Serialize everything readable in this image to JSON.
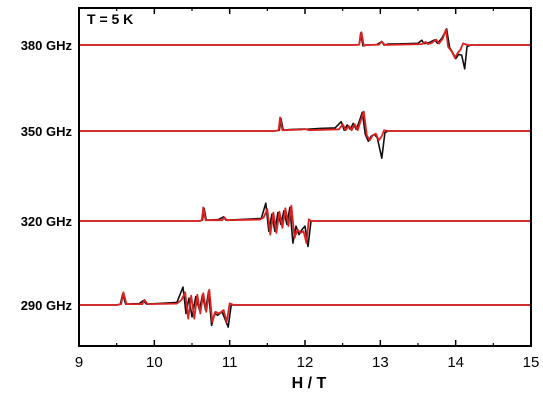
{
  "chart_data": {
    "type": "line",
    "title": "",
    "annotation": "T = 5 K",
    "xlabel": "H / T",
    "ylabel": "",
    "xlim": [
      9,
      15
    ],
    "x_ticks": [
      "9",
      "10",
      "11",
      "12",
      "13",
      "14",
      "15"
    ],
    "grid": false,
    "legend": "none",
    "colors": {
      "experiment": "#111111",
      "simulation": "#dd2222",
      "axes": "#000000"
    },
    "traces": [
      {
        "label": "380 GHz",
        "experiment": [
          [
            9.0,
            0
          ],
          [
            12.6,
            0
          ],
          [
            12.72,
            0.02
          ],
          [
            12.74,
            0.7
          ],
          [
            12.77,
            -0.05
          ],
          [
            12.8,
            0
          ],
          [
            12.95,
            0.02
          ],
          [
            13.02,
            0.2
          ],
          [
            13.05,
            0
          ],
          [
            13.1,
            0.05
          ],
          [
            13.3,
            0.07
          ],
          [
            13.5,
            0.1
          ],
          [
            13.55,
            0.28
          ],
          [
            13.58,
            0.08
          ],
          [
            13.65,
            0.14
          ],
          [
            13.72,
            0.3
          ],
          [
            13.76,
            0.1
          ],
          [
            13.82,
            0.42
          ],
          [
            13.88,
            0.95
          ],
          [
            13.92,
            -0.15
          ],
          [
            13.96,
            -0.45
          ],
          [
            14.0,
            -0.8
          ],
          [
            14.04,
            -0.55
          ],
          [
            14.08,
            -0.6
          ],
          [
            14.12,
            -1.4
          ],
          [
            14.15,
            -0.1
          ],
          [
            14.2,
            0
          ],
          [
            15.0,
            0
          ]
        ],
        "simulation": [
          [
            9.0,
            0
          ],
          [
            12.6,
            0
          ],
          [
            12.72,
            0.02
          ],
          [
            12.75,
            0.75
          ],
          [
            12.78,
            -0.05
          ],
          [
            12.81,
            0
          ],
          [
            12.98,
            0.02
          ],
          [
            13.02,
            0.2
          ],
          [
            13.06,
            0
          ],
          [
            13.55,
            0.05
          ],
          [
            13.6,
            0.18
          ],
          [
            13.63,
            0.05
          ],
          [
            13.68,
            0.12
          ],
          [
            13.74,
            0.32
          ],
          [
            13.78,
            0.08
          ],
          [
            13.83,
            0.4
          ],
          [
            13.87,
            0.9
          ],
          [
            13.9,
            -0.1
          ],
          [
            13.95,
            -0.4
          ],
          [
            13.99,
            -0.75
          ],
          [
            14.03,
            -0.45
          ],
          [
            14.06,
            -0.3
          ],
          [
            14.1,
            0.1
          ],
          [
            14.15,
            0
          ],
          [
            15.0,
            0
          ]
        ]
      },
      {
        "label": "350 GHz",
        "experiment": [
          [
            9.0,
            0
          ],
          [
            11.6,
            0
          ],
          [
            11.66,
            0.05
          ],
          [
            11.68,
            0.75
          ],
          [
            11.71,
            0.05
          ],
          [
            11.8,
            0.08
          ],
          [
            11.98,
            0.12
          ],
          [
            12.02,
            0.1
          ],
          [
            12.2,
            0.15
          ],
          [
            12.4,
            0.18
          ],
          [
            12.48,
            0.55
          ],
          [
            12.52,
            0.05
          ],
          [
            12.56,
            0.35
          ],
          [
            12.6,
            0.1
          ],
          [
            12.64,
            0.45
          ],
          [
            12.68,
            0.1
          ],
          [
            12.72,
            0.55
          ],
          [
            12.76,
            1.1
          ],
          [
            12.8,
            -0.2
          ],
          [
            12.84,
            -0.6
          ],
          [
            12.88,
            -0.3
          ],
          [
            12.92,
            -0.2
          ],
          [
            12.96,
            -0.4
          ],
          [
            13.02,
            -1.6
          ],
          [
            13.06,
            -0.1
          ],
          [
            13.1,
            0
          ],
          [
            15.0,
            0
          ]
        ],
        "simulation": [
          [
            9.0,
            0
          ],
          [
            11.6,
            0
          ],
          [
            11.65,
            0.05
          ],
          [
            11.67,
            0.8
          ],
          [
            11.7,
            0.05
          ],
          [
            11.95,
            0.08
          ],
          [
            12.0,
            0.12
          ],
          [
            12.05,
            0.05
          ],
          [
            12.45,
            0.1
          ],
          [
            12.5,
            0.4
          ],
          [
            12.54,
            0.05
          ],
          [
            12.58,
            0.3
          ],
          [
            12.62,
            0.05
          ],
          [
            12.66,
            0.4
          ],
          [
            12.7,
            0.05
          ],
          [
            12.74,
            0.6
          ],
          [
            12.78,
            1.15
          ],
          [
            12.82,
            -0.25
          ],
          [
            12.86,
            -0.55
          ],
          [
            12.9,
            -0.25
          ],
          [
            12.94,
            -0.15
          ],
          [
            12.98,
            -0.55
          ],
          [
            13.02,
            -0.3
          ],
          [
            13.05,
            0.05
          ],
          [
            13.1,
            0
          ],
          [
            15.0,
            0
          ]
        ]
      },
      {
        "label": "320 GHz",
        "experiment": [
          [
            9.0,
            0
          ],
          [
            10.6,
            0
          ],
          [
            10.64,
            0.05
          ],
          [
            10.66,
            0.75
          ],
          [
            10.69,
            0.05
          ],
          [
            10.85,
            0.08
          ],
          [
            10.92,
            0.25
          ],
          [
            10.95,
            0.05
          ],
          [
            11.2,
            0.1
          ],
          [
            11.42,
            0.15
          ],
          [
            11.48,
            1.05
          ],
          [
            11.52,
            -0.6
          ],
          [
            11.56,
            0.4
          ],
          [
            11.6,
            -0.6
          ],
          [
            11.64,
            0.5
          ],
          [
            11.68,
            -0.2
          ],
          [
            11.72,
            0.6
          ],
          [
            11.76,
            -0.2
          ],
          [
            11.8,
            0.8
          ],
          [
            11.84,
            -1.3
          ],
          [
            11.88,
            -0.3
          ],
          [
            11.92,
            -0.8
          ],
          [
            11.96,
            -0.5
          ],
          [
            12.0,
            -0.3
          ],
          [
            12.04,
            -1.5
          ],
          [
            12.08,
            0
          ],
          [
            15.0,
            0
          ]
        ],
        "simulation": [
          [
            9.0,
            0
          ],
          [
            10.6,
            0
          ],
          [
            10.63,
            0.05
          ],
          [
            10.65,
            0.8
          ],
          [
            10.68,
            0.05
          ],
          [
            10.9,
            0.05
          ],
          [
            10.93,
            0.22
          ],
          [
            10.96,
            0.05
          ],
          [
            11.4,
            0.08
          ],
          [
            11.45,
            0.2
          ],
          [
            11.5,
            0.7
          ],
          [
            11.54,
            -0.8
          ],
          [
            11.58,
            0.5
          ],
          [
            11.62,
            -0.7
          ],
          [
            11.66,
            0.55
          ],
          [
            11.7,
            -0.4
          ],
          [
            11.74,
            0.75
          ],
          [
            11.78,
            -0.3
          ],
          [
            11.82,
            0.9
          ],
          [
            11.86,
            -1.0
          ],
          [
            11.9,
            -0.5
          ],
          [
            11.94,
            -0.7
          ],
          [
            11.98,
            -0.6
          ],
          [
            12.02,
            -1.3
          ],
          [
            12.05,
            0.1
          ],
          [
            12.08,
            0
          ],
          [
            15.0,
            0
          ]
        ]
      },
      {
        "label": "290 GHz",
        "experiment": [
          [
            9.0,
            0
          ],
          [
            9.5,
            0
          ],
          [
            9.55,
            0.05
          ],
          [
            9.58,
            0.65
          ],
          [
            9.62,
            0.05
          ],
          [
            9.8,
            0.08
          ],
          [
            9.85,
            0.25
          ],
          [
            9.9,
            0.05
          ],
          [
            10.1,
            0.1
          ],
          [
            10.3,
            0.15
          ],
          [
            10.38,
            1.05
          ],
          [
            10.42,
            -0.5
          ],
          [
            10.46,
            0.4
          ],
          [
            10.5,
            -0.7
          ],
          [
            10.55,
            0.5
          ],
          [
            10.6,
            -0.3
          ],
          [
            10.64,
            0.6
          ],
          [
            10.68,
            -0.3
          ],
          [
            10.72,
            0.8
          ],
          [
            10.76,
            -1.2
          ],
          [
            10.8,
            -0.5
          ],
          [
            10.84,
            -0.6
          ],
          [
            10.9,
            -0.4
          ],
          [
            10.98,
            -1.3
          ],
          [
            11.02,
            0
          ],
          [
            15.0,
            0
          ]
        ],
        "simulation": [
          [
            9.0,
            0
          ],
          [
            9.5,
            0
          ],
          [
            9.56,
            0.05
          ],
          [
            9.59,
            0.75
          ],
          [
            9.63,
            0.05
          ],
          [
            9.84,
            0.05
          ],
          [
            9.87,
            0.3
          ],
          [
            9.91,
            0.05
          ],
          [
            10.3,
            0.08
          ],
          [
            10.36,
            0.3
          ],
          [
            10.41,
            0.75
          ],
          [
            10.45,
            -0.8
          ],
          [
            10.49,
            0.55
          ],
          [
            10.53,
            -0.8
          ],
          [
            10.57,
            0.6
          ],
          [
            10.61,
            -0.5
          ],
          [
            10.65,
            0.7
          ],
          [
            10.69,
            -0.4
          ],
          [
            10.73,
            0.9
          ],
          [
            10.77,
            -1.0
          ],
          [
            10.81,
            -0.4
          ],
          [
            10.86,
            -0.5
          ],
          [
            10.92,
            -0.3
          ],
          [
            10.96,
            -1.0
          ],
          [
            11.0,
            0.1
          ],
          [
            11.05,
            0
          ],
          [
            15.0,
            0
          ]
        ]
      }
    ]
  }
}
